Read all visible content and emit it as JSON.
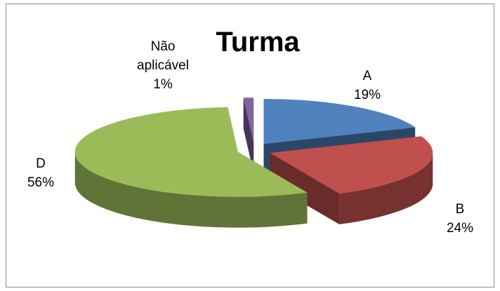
{
  "chart_data": {
    "type": "pie",
    "title": "Turma",
    "categories": [
      "A",
      "B",
      "D",
      "Não aplicável"
    ],
    "values": [
      19,
      24,
      56,
      1
    ],
    "value_labels": [
      "19%",
      "24%",
      "56%",
      "1%"
    ],
    "colors": [
      "#4f81bd",
      "#c0504d",
      "#9bbb59",
      "#8064a2"
    ],
    "exploded": true,
    "three_d": true
  }
}
